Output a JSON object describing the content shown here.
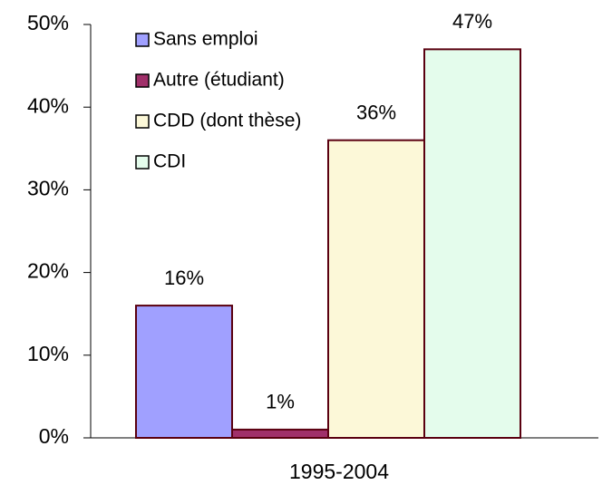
{
  "chart_data": {
    "type": "bar",
    "categories": [
      "1995-2004"
    ],
    "series": [
      {
        "name": "Sans emploi",
        "color": "#a0a0ff",
        "values": [
          16
        ],
        "value_labels": [
          "16%"
        ]
      },
      {
        "name": "Autre (étudiant)",
        "color": "#a0306a",
        "values": [
          1
        ],
        "value_labels": [
          "1%"
        ]
      },
      {
        "name": "CDD (dont thèse)",
        "color": "#fcf8d8",
        "values": [
          36
        ],
        "value_labels": [
          "36%"
        ]
      },
      {
        "name": "CDI",
        "color": "#e4fcec",
        "values": [
          47
        ],
        "value_labels": [
          "47%"
        ]
      }
    ],
    "ylim": [
      0,
      50
    ],
    "yticks": [
      {
        "value": 0,
        "label": "0%"
      },
      {
        "value": 10,
        "label": "10%"
      },
      {
        "value": 20,
        "label": "20%"
      },
      {
        "value": 30,
        "label": "30%"
      },
      {
        "value": 40,
        "label": "40%"
      },
      {
        "value": 50,
        "label": "50%"
      }
    ],
    "legend": "upper left"
  }
}
